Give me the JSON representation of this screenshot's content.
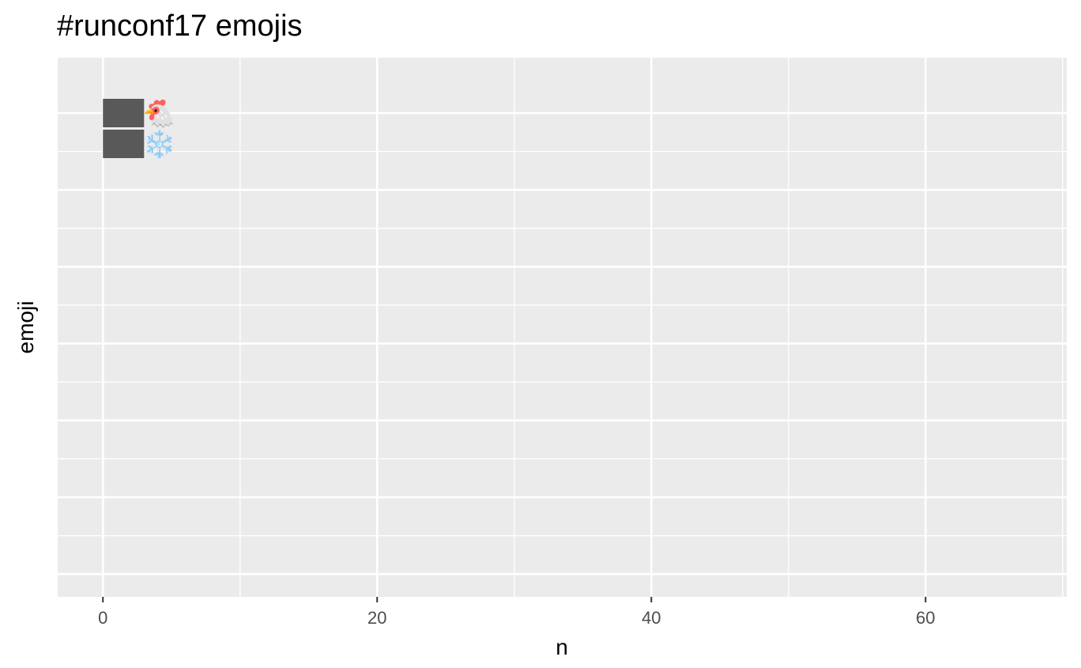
{
  "chart_data": {
    "type": "bar",
    "orientation": "horizontal",
    "title": "#runconf17 emojis",
    "xlabel": "n",
    "ylabel": "emoji",
    "xlim": [
      -3.3,
      70.3
    ],
    "xticks": [
      0,
      20,
      40,
      60
    ],
    "xtick_labels": [
      "0",
      "20",
      "40",
      "60"
    ],
    "categories": [
      "🐔",
      "❄️"
    ],
    "values": [
      3,
      3
    ],
    "grid": true,
    "colors": {
      "panel": "#ebebeb",
      "grid": "#ffffff",
      "bar": "#595959",
      "tick_text": "#4d4d4d"
    }
  }
}
